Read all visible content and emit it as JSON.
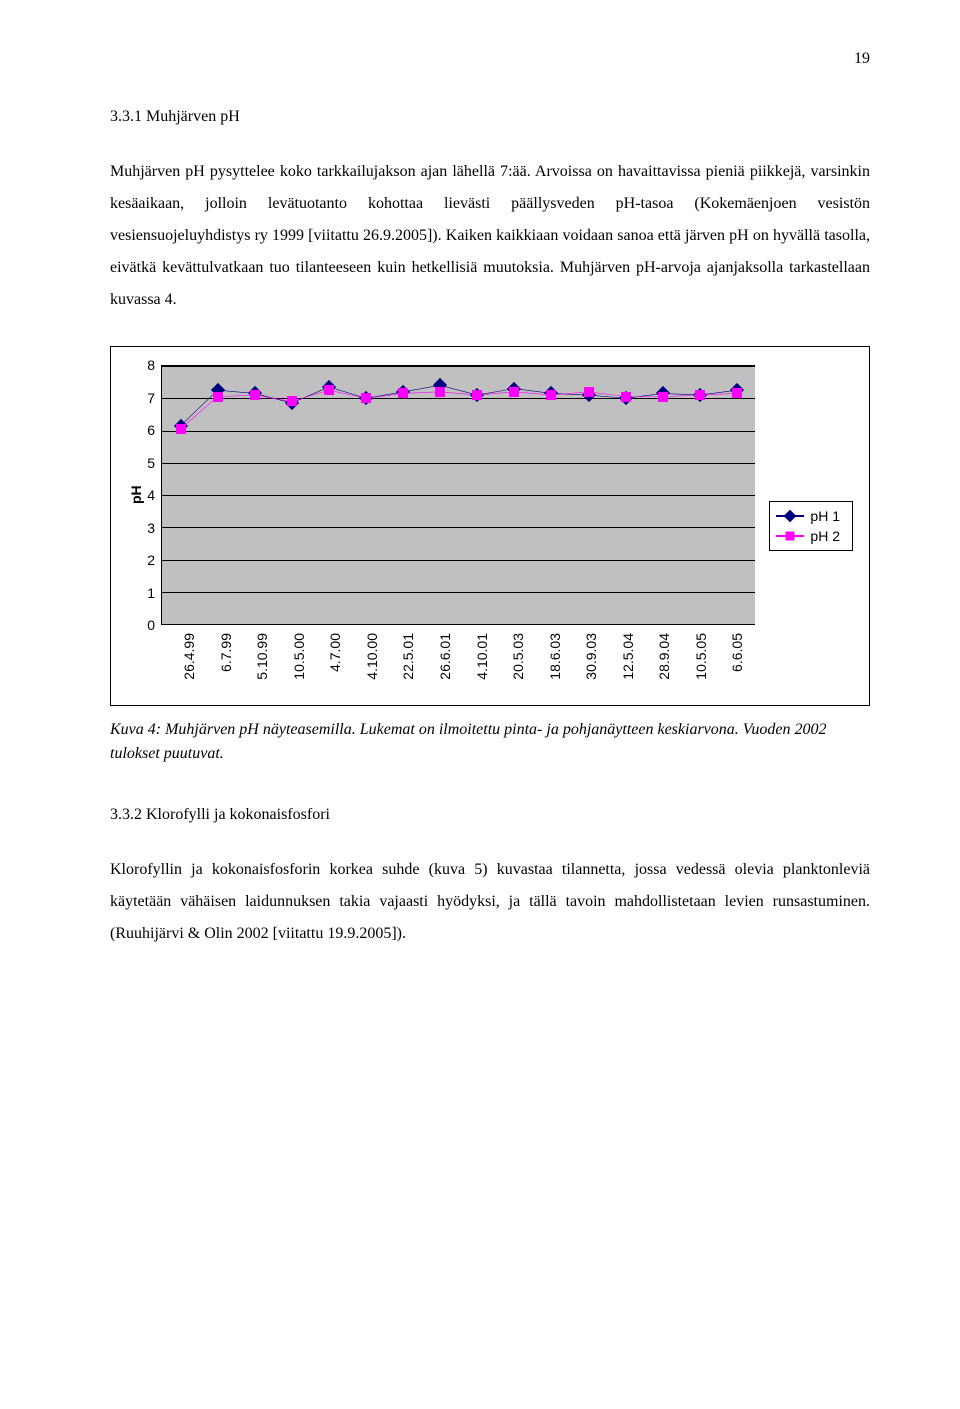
{
  "page_number": "19",
  "section_331": {
    "heading": "3.3.1   Muhjärven pH",
    "paragraph": "Muhjärven pH pysyttelee koko tarkkailujakson ajan lähellä 7:ää. Arvoissa on havaittavissa pieniä piikkejä, varsinkin kesäaikaan, jolloin levätuotanto kohottaa lievästi päällysveden pH-tasoa (Kokemäenjoen vesistön vesiensuojeluyhdistys ry 1999 [viitattu 26.9.2005]). Kaiken kaikkiaan voidaan sanoa että järven pH on hyvällä tasolla, eivätkä kevättulvatkaan tuo tilanteeseen kuin hetkellisiä muutoksia. Muhjärven pH-arvoja ajanjaksolla tarkastellaan kuvassa 4."
  },
  "chart": {
    "ylabel": "pH",
    "ylim": [
      0,
      8
    ],
    "yticks": [
      0,
      1,
      2,
      3,
      4,
      5,
      6,
      7,
      8
    ],
    "x_categories": [
      "26.4.99",
      "6.7.99",
      "5.10.99",
      "10.5.00",
      "4.7.00",
      "4.10.00",
      "22.5.01",
      "26.6.01",
      "4.10.01",
      "20.5.03",
      "18.6.03",
      "30.9.03",
      "12.5.04",
      "28.9.04",
      "10.5.05",
      "6.6.05"
    ],
    "series": [
      {
        "name": "pH 1",
        "color": "#000080",
        "marker": "diamond",
        "values": [
          6.15,
          7.25,
          7.15,
          6.85,
          7.35,
          7.0,
          7.2,
          7.4,
          7.1,
          7.3,
          7.15,
          7.1,
          7.0,
          7.15,
          7.1,
          7.25
        ]
      },
      {
        "name": "pH 2",
        "color": "#ff00ff",
        "marker": "square",
        "values": [
          6.05,
          7.05,
          7.1,
          6.9,
          7.25,
          7.0,
          7.15,
          7.2,
          7.1,
          7.2,
          7.1,
          7.2,
          7.05,
          7.05,
          7.1,
          7.15
        ]
      }
    ],
    "plot_bg": "#c0c0c0",
    "grid_color": "#000000"
  },
  "caption": "Kuva 4: Muhjärven pH näyteasemilla. Lukemat on ilmoitettu pinta- ja pohjanäytteen keskiarvona. Vuoden 2002 tulokset puutuvat.",
  "section_332": {
    "heading": "3.3.2   Klorofylli ja kokonaisfosfori",
    "paragraph": "Klorofyllin ja kokonaisfosforin korkea suhde (kuva 5) kuvastaa tilannetta, jossa vedessä olevia planktonleviä käytetään vähäisen laidunnuksen takia vajaasti hyödyksi, ja tällä tavoin mahdollistetaan levien runsastuminen. (Ruuhijärvi & Olin 2002 [viitattu 19.9.2005])."
  }
}
